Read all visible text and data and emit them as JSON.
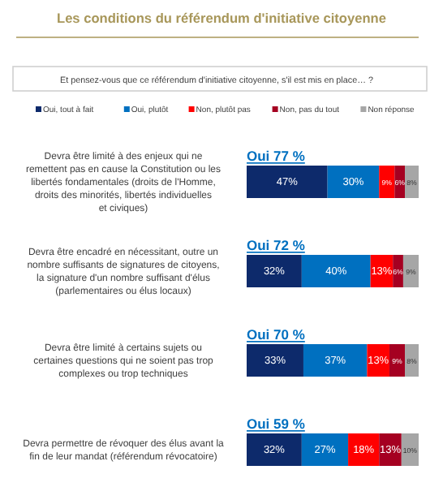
{
  "chart_data": {
    "type": "bar",
    "orientation": "horizontal",
    "stacked": true,
    "legend": "top",
    "title": "Les conditions du référendum d'initiative citoyenne",
    "subtitle": "Et pensez-vous que ce référendum d'initiative citoyenne, s'il est mis en place… ?",
    "categories": [
      "Devra être limité à des enjeux qui ne remettent pas en cause la Constitution ou les libertés fondamentales (droits de l'Homme, droits des minorités, libertés individuelles et civiques)",
      "Devra être encadré en nécessitant, outre un nombre suffisants de signatures de citoyens, la signature d'un nombre suffisant d'élus (parlementaires ou élus locaux)",
      "Devra être limité à certains sujets ou certaines questions qui ne soient pas trop complexes ou trop techniques",
      "Devra permettre de révoquer des élus avant la fin de leur mandat (référendum révocatoire)"
    ],
    "series": [
      {
        "name": "Oui, tout à fait",
        "color": "#0d2a6b",
        "values": [
          47,
          32,
          33,
          32
        ],
        "value_labels": [
          "47%",
          "32%",
          "33%",
          "32%"
        ]
      },
      {
        "name": "Oui, plutôt",
        "color": "#0070c0",
        "values": [
          30,
          40,
          37,
          27
        ],
        "value_labels": [
          "30%",
          "40%",
          "37%",
          "27%"
        ]
      },
      {
        "name": "Non, plutôt pas",
        "color": "#ff0000",
        "values": [
          9,
          13,
          13,
          18
        ],
        "value_labels": [
          "9%",
          "13%",
          "13%",
          "18%"
        ]
      },
      {
        "name": "Non, pas du tout",
        "color": "#a50021",
        "values": [
          6,
          6,
          9,
          13
        ],
        "value_labels": [
          "6%",
          "6%",
          "9%",
          "13%"
        ]
      },
      {
        "name": "Non réponse",
        "color": "#a6a6a6",
        "values": [
          8,
          9,
          8,
          10
        ],
        "value_labels": [
          "8%",
          "9%",
          "8%",
          "10%"
        ]
      }
    ],
    "xlim": [
      0,
      100
    ],
    "tick_labels": "y",
    "annotations": [
      "Oui 77 %",
      "Oui 72 %",
      "Oui 70 %",
      "Oui 59 %"
    ]
  }
}
